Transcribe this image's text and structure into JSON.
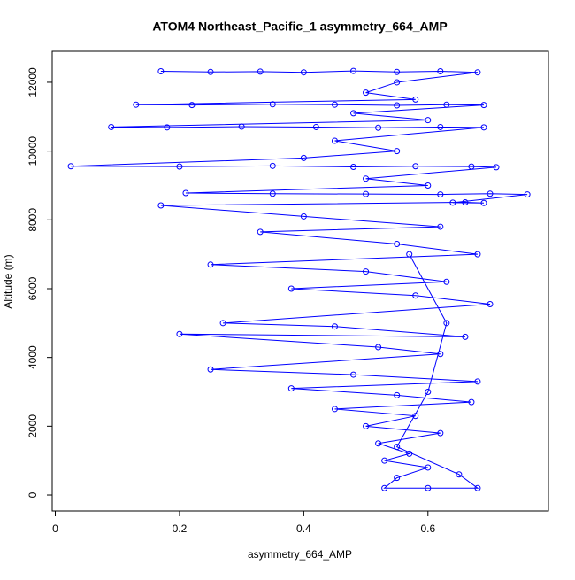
{
  "chart_data": {
    "type": "scatter-line",
    "title": "ATOM4 Northeast_Pacific_1 asymmetry_664_AMP",
    "x_label": "asymmetry_664_AMP",
    "y_label": "Altitude (m)",
    "color": "#0000ff",
    "xlim": [
      -0.005,
      0.794
    ],
    "ylim": [
      -463,
      12900
    ],
    "xticks": [
      0,
      0.2,
      0.4,
      0.6
    ],
    "yticks": [
      0,
      2000,
      4000,
      6000,
      8000,
      10000,
      12000
    ],
    "x": [
      0.17,
      0.25,
      0.33,
      0.4,
      0.48,
      0.55,
      0.62,
      0.68,
      0.55,
      0.5,
      0.58,
      0.13,
      0.22,
      0.35,
      0.45,
      0.55,
      0.63,
      0.69,
      0.48,
      0.6,
      0.09,
      0.18,
      0.3,
      0.42,
      0.52,
      0.62,
      0.69,
      0.45,
      0.55,
      0.4,
      0.025,
      0.2,
      0.35,
      0.48,
      0.58,
      0.67,
      0.71,
      0.5,
      0.6,
      0.21,
      0.35,
      0.5,
      0.62,
      0.7,
      0.76,
      0.64,
      0.69,
      0.66,
      0.17,
      0.4,
      0.62,
      0.33,
      0.55,
      0.68,
      0.25,
      0.5,
      0.63,
      0.38,
      0.58,
      0.7,
      0.27,
      0.45,
      0.66,
      0.2,
      0.52,
      0.62,
      0.25,
      0.48,
      0.68,
      0.38,
      0.55,
      0.67,
      0.45,
      0.58,
      0.5,
      0.62,
      0.52,
      0.57,
      0.53,
      0.6,
      0.55,
      0.53,
      0.6,
      0.68,
      0.65,
      0.55,
      0.6,
      0.63,
      0.57
    ],
    "values": [
      12320,
      12300,
      12310,
      12290,
      12330,
      12300,
      12320,
      12290,
      12000,
      11700,
      11500,
      11350,
      11340,
      11360,
      11350,
      11330,
      11350,
      11340,
      11100,
      10900,
      10700,
      10690,
      10710,
      10700,
      10680,
      10700,
      10690,
      10300,
      10000,
      9800,
      9560,
      9550,
      9570,
      9540,
      9560,
      9550,
      9530,
      9200,
      9000,
      8780,
      8760,
      8750,
      8740,
      8760,
      8740,
      8500,
      8490,
      8510,
      8420,
      8100,
      7800,
      7650,
      7300,
      7000,
      6700,
      6500,
      6200,
      6000,
      5800,
      5550,
      5000,
      4900,
      4600,
      4680,
      4300,
      4100,
      3650,
      3500,
      3300,
      3100,
      2900,
      2700,
      2500,
      2300,
      2000,
      1800,
      1500,
      1200,
      1000,
      800,
      500,
      200,
      200,
      200,
      600,
      1400,
      3000,
      5000,
      7000
    ]
  }
}
